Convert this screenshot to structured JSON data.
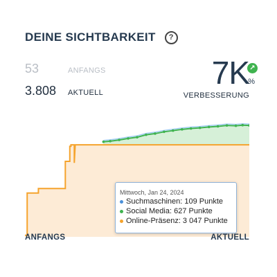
{
  "widget": {
    "title": "DEINE SICHTBARKEIT",
    "help_icon": "question-circle-icon"
  },
  "stats": {
    "start": {
      "value": "53",
      "label": "ANFANGS"
    },
    "current": {
      "value": "3.808",
      "label": "AKTUELL"
    }
  },
  "improvement": {
    "value": "7K",
    "unit": "%",
    "label": "VERBESSERUNG",
    "icon": "arrow-up-right-icon",
    "icon_color": "#3fb34f"
  },
  "chart_data": {
    "type": "area",
    "x_labels": {
      "start": "ANFANGS",
      "end": "AKTUELL"
    },
    "series": [
      {
        "name": "Suchmaschinen",
        "color": "#4a90d9"
      },
      {
        "name": "Social Media",
        "color": "#3fb34f"
      },
      {
        "name": "Online-Präsenz",
        "color": "#f5a32c"
      }
    ],
    "online_praesenz_steps": [
      [
        0,
        53
      ],
      [
        1,
        53
      ],
      [
        1,
        1450
      ],
      [
        6,
        1450
      ],
      [
        6,
        1600
      ],
      [
        18,
        1600
      ],
      [
        18,
        2500
      ],
      [
        20,
        2500
      ],
      [
        20,
        3000
      ],
      [
        20.5,
        3000
      ],
      [
        20.5,
        3047
      ],
      [
        22,
        3047
      ],
      [
        22,
        2450
      ],
      [
        22.4,
        3047
      ],
      [
        100,
        3047
      ]
    ],
    "social_media_values": [
      [
        35,
        3150
      ],
      [
        38,
        3170
      ],
      [
        42,
        3210
      ],
      [
        46,
        3260
      ],
      [
        50,
        3300
      ],
      [
        54,
        3380
      ],
      [
        58,
        3420
      ],
      [
        62,
        3480
      ],
      [
        66,
        3520
      ],
      [
        70,
        3560
      ],
      [
        74,
        3590
      ],
      [
        78,
        3610
      ],
      [
        82,
        3640
      ],
      [
        86,
        3660
      ],
      [
        90,
        3690
      ],
      [
        94,
        3680
      ],
      [
        97,
        3700
      ],
      [
        100,
        3690
      ]
    ],
    "ylim": [
      0,
      3900
    ],
    "colors": {
      "online_fill": "#fdebd6",
      "social_fill": "#d6f0d8"
    }
  },
  "tooltip": {
    "date": "Mittwoch, Jan 24, 2024",
    "rows": [
      {
        "text": "Suchmaschinen: 109 Punkte",
        "color": "#4a90d9"
      },
      {
        "text": "Social Media: 627 Punkte",
        "color": "#3fb34f"
      },
      {
        "text": "Online-Präsenz: 3 047 Punkte",
        "color": "#f5a32c"
      }
    ]
  }
}
